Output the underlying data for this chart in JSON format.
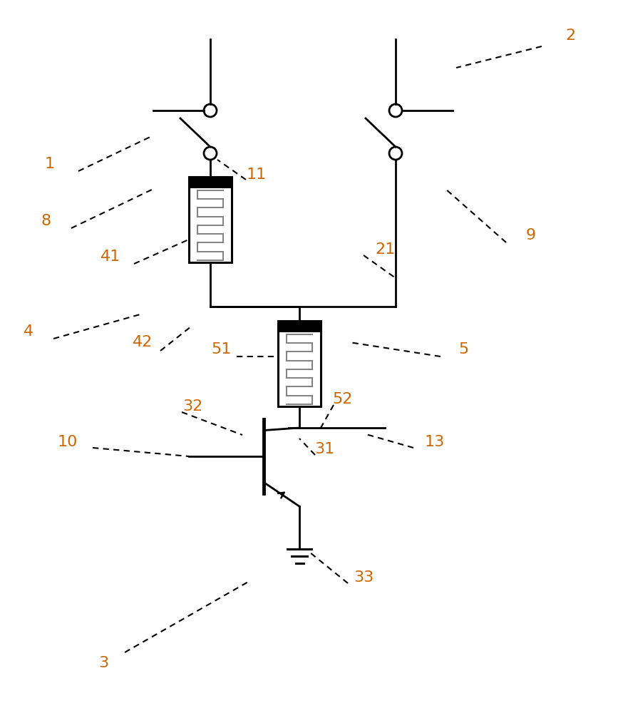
{
  "bg_color": "#ffffff",
  "line_color": "#000000",
  "label_color": "#cc6600",
  "label_fontsize": 16,
  "fig_width": 8.67,
  "fig_height": 10.0,
  "dpi": 100
}
